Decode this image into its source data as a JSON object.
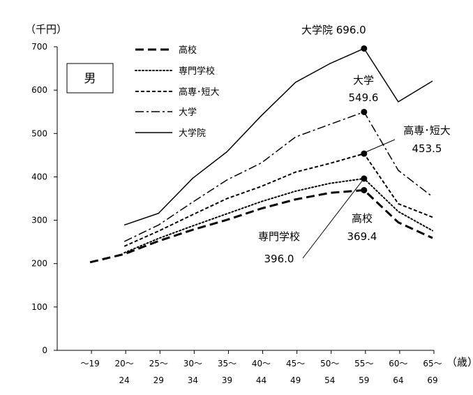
{
  "chart_data": {
    "type": "line",
    "y_unit": "（千円）",
    "x_unit": "（歳）",
    "ylim": [
      0,
      700
    ],
    "yticks": [
      0,
      100,
      200,
      300,
      400,
      500,
      600,
      700
    ],
    "grid": false,
    "legend_position": "top-left",
    "gender_label": "男",
    "categories": [
      [
        "～19",
        ""
      ],
      [
        "20～",
        "24"
      ],
      [
        "25～",
        "29"
      ],
      [
        "30～",
        "34"
      ],
      [
        "35～",
        "39"
      ],
      [
        "40～",
        "44"
      ],
      [
        "45～",
        "49"
      ],
      [
        "50～",
        "54"
      ],
      [
        "55～",
        "59"
      ],
      [
        "60～",
        "64"
      ],
      [
        "65～",
        "69"
      ]
    ],
    "series": [
      {
        "name": "高校",
        "dash": "long-dash",
        "values": [
          203,
          222,
          252,
          278,
          301,
          327,
          348,
          363,
          369.4,
          295,
          259
        ]
      },
      {
        "name": "専門学校",
        "dash": "dotted",
        "values": [
          null,
          225,
          258,
          287,
          315,
          343,
          367,
          385,
          396.0,
          320,
          276
        ]
      },
      {
        "name": "高専･短大",
        "dash": "short-dash",
        "values": [
          null,
          240,
          275,
          313,
          350,
          378,
          411,
          431,
          453.5,
          338,
          307
        ]
      },
      {
        "name": "大学",
        "dash": "dash-dot",
        "values": [
          null,
          251,
          289,
          342,
          393,
          432,
          492,
          521,
          549.6,
          415,
          354
        ]
      },
      {
        "name": "大学院",
        "dash": "solid",
        "values": [
          null,
          289,
          316,
          397,
          458,
          541,
          618,
          661,
          696.0,
          573,
          621
        ]
      }
    ],
    "annotations": [
      {
        "series": "大学院",
        "index": 8,
        "text": [
          "大学院 696.0"
        ]
      },
      {
        "series": "大学",
        "index": 8,
        "text": [
          "大学",
          "549.6"
        ]
      },
      {
        "series": "高専･短大",
        "index": 8,
        "text": [
          "高専･短大",
          "453.5"
        ]
      },
      {
        "series": "高校",
        "index": 8,
        "text": [
          "高校",
          "369.4"
        ]
      },
      {
        "series": "専門学校",
        "index": 8,
        "text": [
          "専門学校",
          "396.0"
        ]
      }
    ]
  }
}
